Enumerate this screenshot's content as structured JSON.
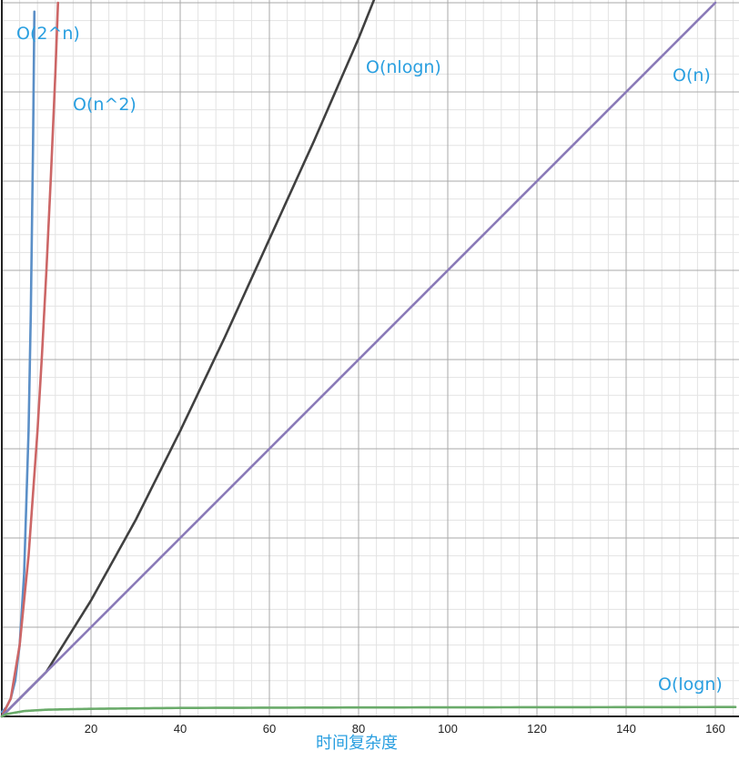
{
  "chart_data": {
    "type": "line",
    "title": "",
    "xlabel": "时间复杂度",
    "ylabel": "",
    "xlim": [
      0,
      164.5
    ],
    "ylim": [
      0,
      160
    ],
    "grid": true,
    "x_ticks": [
      "20",
      "40",
      "60",
      "80",
      "100",
      "120",
      "140",
      "160"
    ],
    "x_tick_values": [
      20,
      40,
      60,
      80,
      100,
      120,
      140,
      160
    ],
    "series": [
      {
        "name": "O(2^n)",
        "color": "#5b8fc7",
        "x": [
          0,
          1,
          2,
          3,
          4,
          5,
          6,
          6.5,
          7,
          7.3
        ],
        "y": [
          1,
          2,
          4,
          8,
          16,
          32,
          64,
          90.5,
          128,
          158
        ]
      },
      {
        "name": "O(n^2)",
        "color": "#cc6666",
        "x": [
          0,
          2,
          4,
          6,
          8,
          9,
          10,
          11,
          12,
          12.6
        ],
        "y": [
          0,
          4,
          16,
          36,
          64,
          81,
          100,
          121,
          144,
          160
        ]
      },
      {
        "name": "O(nlogn)",
        "color": "#404040",
        "x": [
          0,
          10,
          20,
          30,
          40,
          50,
          60,
          70,
          80,
          84
        ],
        "y": [
          0,
          10,
          26,
          44,
          64,
          85,
          107,
          129,
          152,
          162
        ]
      },
      {
        "name": "O(n)",
        "color": "#8a7ab8",
        "x": [
          0,
          40,
          80,
          120,
          160
        ],
        "y": [
          0,
          40,
          80,
          120,
          160
        ]
      },
      {
        "name": "O(logn)",
        "color": "#6aab6a",
        "x": [
          0,
          1,
          5,
          10,
          20,
          40,
          80,
          120,
          164.5
        ],
        "y": [
          0,
          0.5,
          1.2,
          1.5,
          1.7,
          1.9,
          2.0,
          2.05,
          2.1
        ]
      }
    ],
    "label_color": "#2a9fe0"
  }
}
